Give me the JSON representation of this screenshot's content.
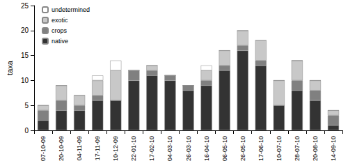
{
  "chart_data": {
    "type": "bar",
    "stacked": true,
    "y_label": "taxa",
    "categories": [
      "07-10-09",
      "20-10-09",
      "04-11-09",
      "17-11-09",
      "10-12-09",
      "22-01-10",
      "17-02-10",
      "04-03-10",
      "26-03-10",
      "16-04-10",
      "06-05-10",
      "26-05-10",
      "17-06-10",
      "10-07-10",
      "28-07-10",
      "20-08-10",
      "14-09-10"
    ],
    "series": [
      {
        "name": "native",
        "color": "#333333",
        "values": [
          2,
          4,
          4,
          6,
          6,
          10,
          11,
          10,
          8,
          9,
          12,
          16,
          13,
          5,
          8,
          6,
          1
        ]
      },
      {
        "name": "crops",
        "color": "#808080",
        "values": [
          2,
          2,
          1,
          1,
          0,
          2,
          1,
          1,
          1,
          1,
          1,
          1,
          1,
          0,
          2,
          2,
          2
        ]
      },
      {
        "name": "exotic",
        "color": "#c8c8c8",
        "values": [
          1,
          3,
          2,
          3,
          6,
          0,
          1,
          0,
          0,
          2,
          3,
          3,
          4,
          5,
          4,
          2,
          1
        ]
      },
      {
        "name": "undetermined",
        "color": "#ffffff",
        "values": [
          0,
          0,
          0,
          1,
          2,
          0,
          0,
          0,
          0,
          1,
          0,
          0,
          0,
          0,
          0,
          0,
          0
        ]
      }
    ],
    "ylim": [
      0,
      25
    ],
    "yticks": [
      0,
      5,
      10,
      15,
      20,
      25
    ],
    "grid": false,
    "legend": "top-left"
  }
}
